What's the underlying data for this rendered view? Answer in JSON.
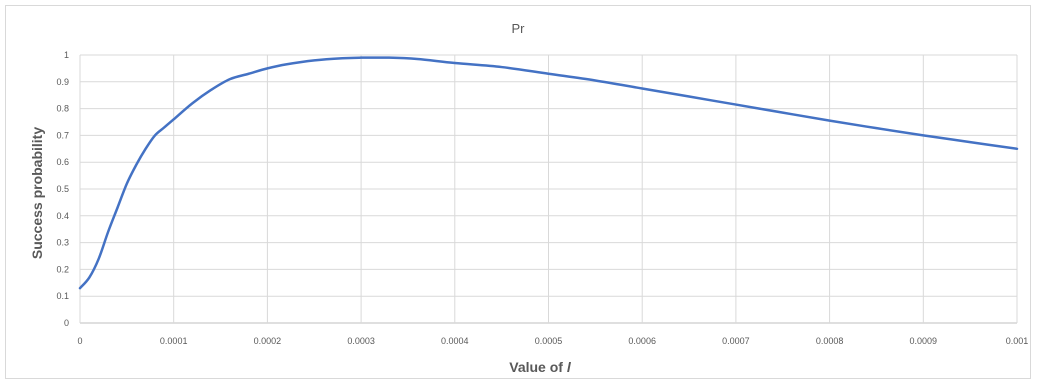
{
  "chart_data": {
    "type": "line",
    "title": "Pr",
    "xlabel_prefix": "Value of ",
    "xlabel_var": "l",
    "ylabel": "Success probability",
    "xlim": [
      0,
      0.001
    ],
    "ylim": [
      0,
      1
    ],
    "x_ticks": [
      "0",
      "0.0001",
      "0.0002",
      "0.0003",
      "0.0004",
      "0.0005",
      "0.0006",
      "0.0007",
      "0.0008",
      "0.0009",
      "0.001"
    ],
    "y_ticks": [
      "0",
      "0.1",
      "0.2",
      "0.3",
      "0.4",
      "0.5",
      "0.6",
      "0.7",
      "0.8",
      "0.9",
      "1"
    ],
    "grid": "vertical-and-horizontal",
    "series": [
      {
        "color": "#4472c4",
        "x": [
          0,
          1e-05,
          2e-05,
          3e-05,
          4e-05,
          5e-05,
          6e-05,
          7e-05,
          8e-05,
          9e-05,
          0.0001,
          0.00012,
          0.00014,
          0.00016,
          0.00018,
          0.0002,
          0.00022,
          0.00025,
          0.00028,
          0.0003,
          0.00033,
          0.00036,
          0.0004,
          0.00045,
          0.0005,
          0.00055,
          0.0006,
          0.00065,
          0.0007,
          0.00075,
          0.0008,
          0.00085,
          0.0009,
          0.00095,
          0.001
        ],
        "y": [
          0.13,
          0.17,
          0.24,
          0.34,
          0.43,
          0.52,
          0.59,
          0.65,
          0.7,
          0.73,
          0.76,
          0.82,
          0.87,
          0.91,
          0.93,
          0.95,
          0.965,
          0.98,
          0.988,
          0.99,
          0.99,
          0.985,
          0.97,
          0.955,
          0.93,
          0.905,
          0.875,
          0.845,
          0.815,
          0.785,
          0.755,
          0.727,
          0.7,
          0.675,
          0.65
        ]
      }
    ]
  }
}
